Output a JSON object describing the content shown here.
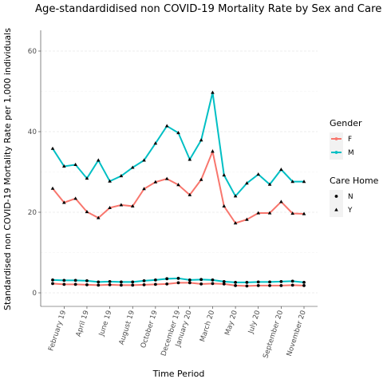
{
  "chart_data": {
    "type": "line",
    "title": "Age-standardidised non COVID-19 Mortality Rate by Sex and Care Home",
    "xlabel": "Time Period",
    "ylabel": "Standardised non COVID-19 Mortality Rate per 1,000 individuals",
    "ylim": [
      0,
      60
    ],
    "y_ticks": [
      0,
      20,
      40,
      60
    ],
    "grid": true,
    "categories": [
      "January 19",
      "February 19",
      "March 19",
      "April 19",
      "May 19",
      "June 19",
      "July 19",
      "August 19",
      "September 19",
      "October 19",
      "November 19",
      "December 19",
      "January 20",
      "February 20",
      "March 20",
      "April 20",
      "May 20",
      "June 20",
      "July 20",
      "August 20",
      "September 20",
      "October 20",
      "November 20"
    ],
    "x_tick_labels": [
      "February 19",
      "April 19",
      "June 19",
      "August 19",
      "October 19",
      "December 19",
      "January 20",
      "March 20",
      "May 20",
      "July 20",
      "September 20",
      "November 20"
    ],
    "x_tick_label_indices": [
      1,
      3,
      5,
      7,
      9,
      11,
      12,
      14,
      16,
      18,
      20,
      22
    ],
    "series": [
      {
        "name": "F",
        "care_home": "N",
        "color": "#F8766D",
        "shape": "circle",
        "values": [
          2.3,
          2.1,
          2.1,
          2.0,
          1.9,
          2.0,
          1.9,
          1.9,
          2.0,
          2.1,
          2.2,
          2.5,
          2.5,
          2.2,
          2.3,
          2.2,
          1.8,
          1.7,
          1.8,
          1.8,
          1.8,
          1.9,
          1.8
        ]
      },
      {
        "name": "F",
        "care_home": "Y",
        "color": "#F8766D",
        "shape": "triangle",
        "values": [
          25.9,
          22.4,
          23.4,
          20.1,
          18.6,
          21.1,
          21.8,
          21.5,
          25.8,
          27.5,
          28.3,
          26.8,
          24.3,
          28.1,
          35.1,
          21.5,
          17.3,
          18.2,
          19.8,
          19.8,
          22.6,
          19.7,
          19.6
        ]
      },
      {
        "name": "M",
        "care_home": "N",
        "color": "#00BFC4",
        "shape": "circle",
        "values": [
          3.2,
          3.1,
          3.1,
          3.0,
          2.7,
          2.8,
          2.7,
          2.7,
          3.0,
          3.2,
          3.5,
          3.6,
          3.2,
          3.3,
          3.2,
          2.8,
          2.6,
          2.6,
          2.7,
          2.7,
          2.8,
          2.9,
          2.6
        ]
      },
      {
        "name": "M",
        "care_home": "Y",
        "color": "#00BFC4",
        "shape": "triangle",
        "values": [
          35.8,
          31.4,
          31.8,
          28.4,
          32.9,
          27.7,
          29.0,
          31.1,
          32.9,
          37.1,
          41.4,
          39.7,
          33.1,
          37.9,
          49.7,
          29.2,
          24.0,
          27.2,
          29.4,
          26.9,
          30.6,
          27.6,
          27.6
        ]
      }
    ],
    "legends": [
      {
        "title": "Gender",
        "entries": [
          {
            "label": "F",
            "color": "#F8766D"
          },
          {
            "label": "M",
            "color": "#00BFC4"
          }
        ]
      },
      {
        "title": "Care Home",
        "entries": [
          {
            "label": "N",
            "shape": "circle"
          },
          {
            "label": "Y",
            "shape": "triangle"
          }
        ]
      }
    ],
    "legend_position": "right"
  }
}
